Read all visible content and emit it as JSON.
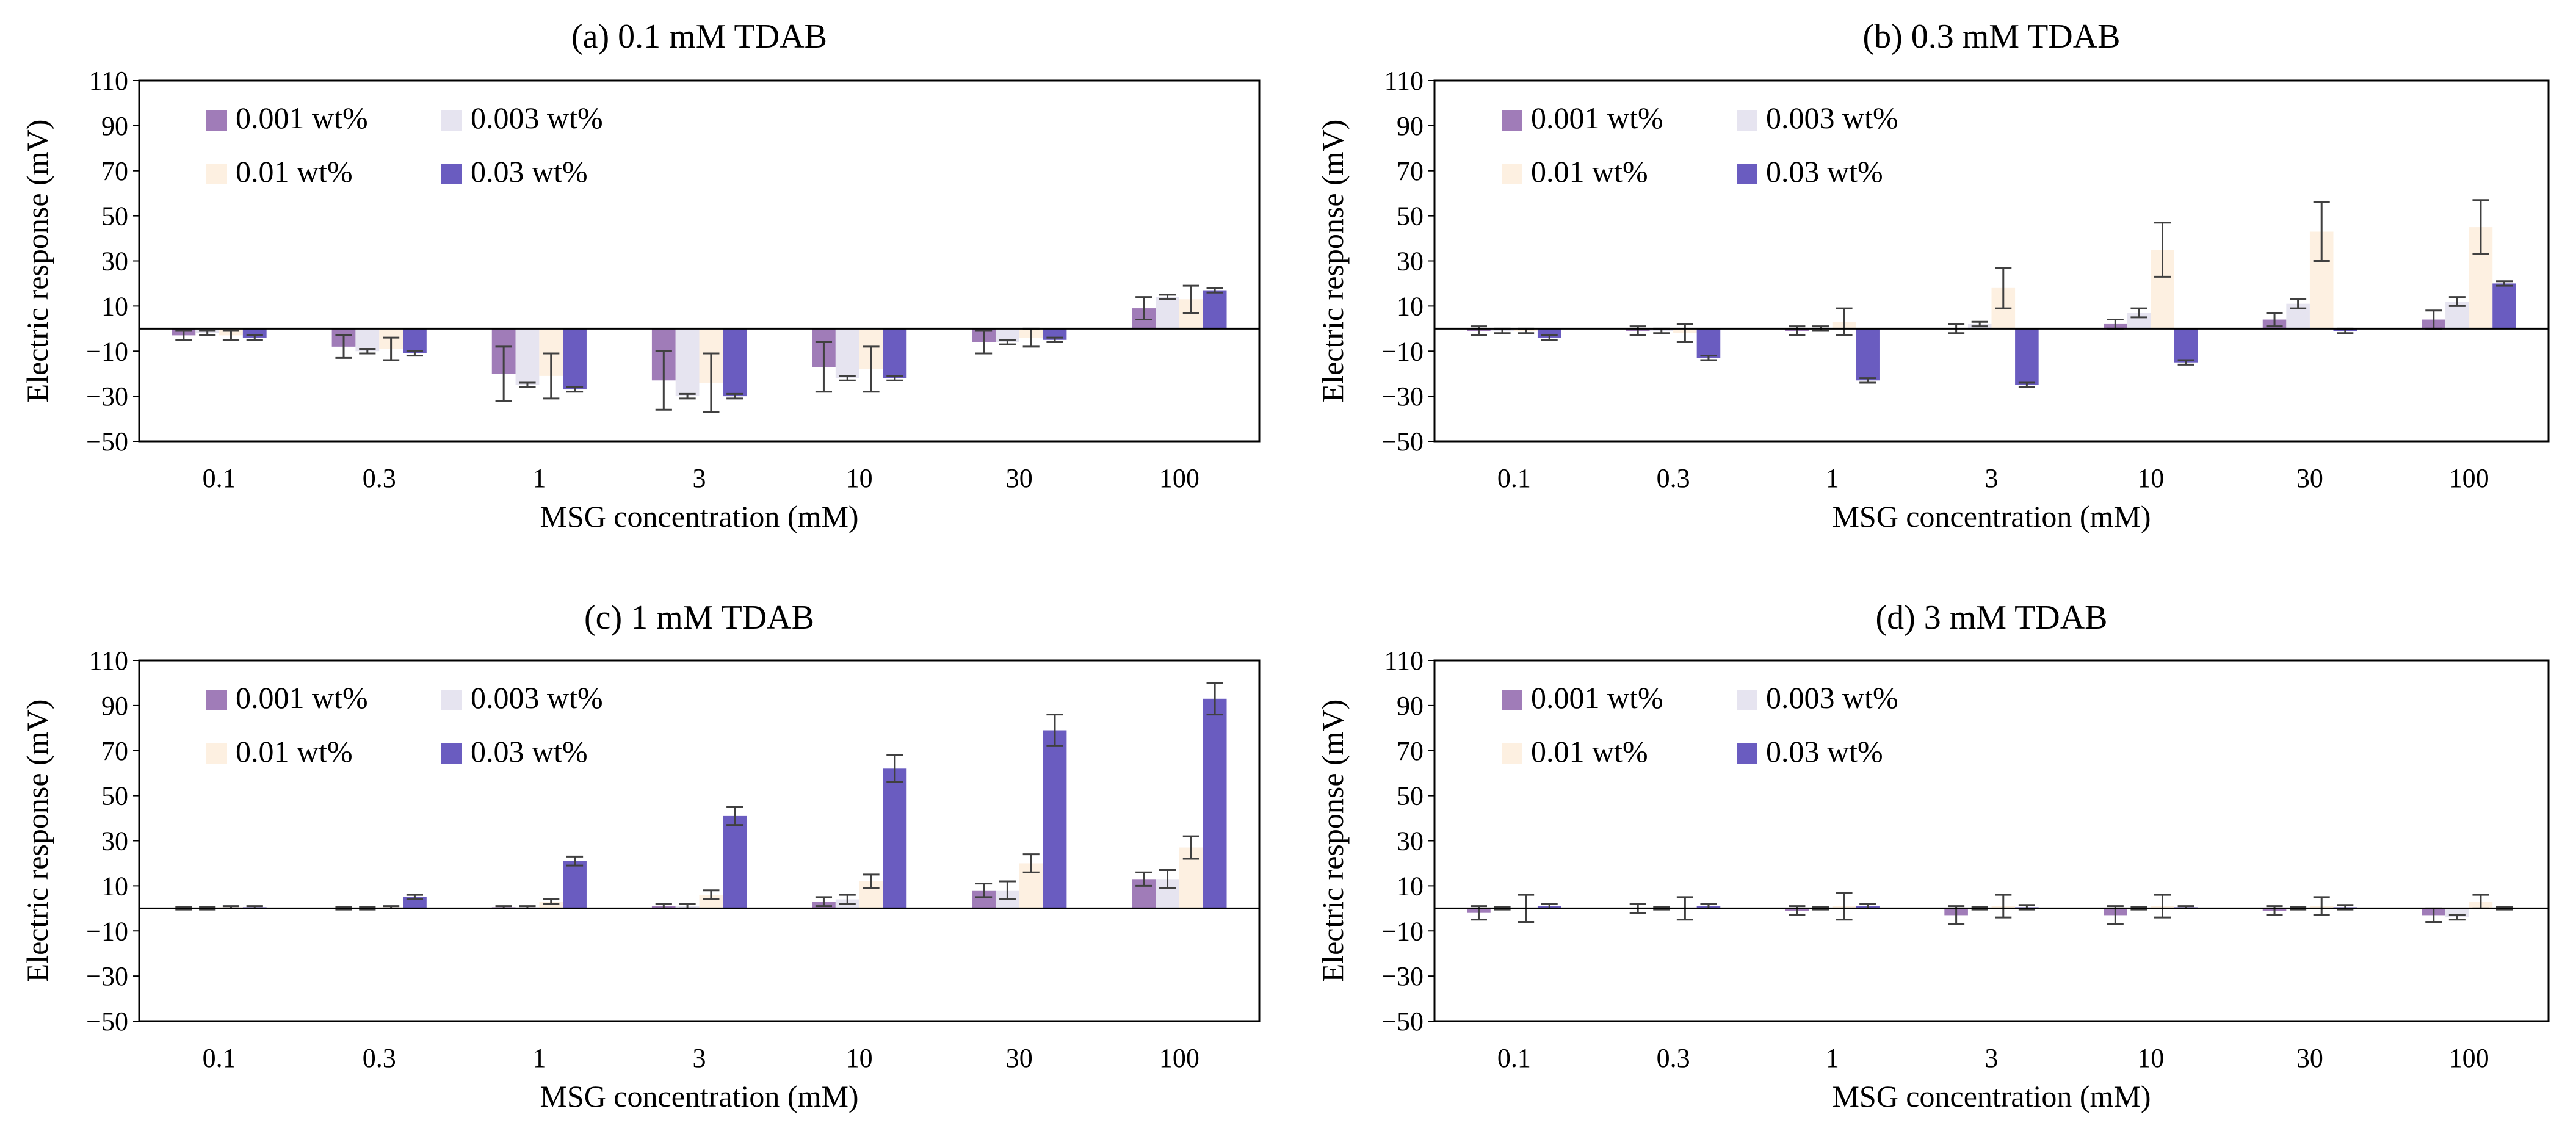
{
  "colors": {
    "s1": "#a07cb8",
    "s2": "#e6e4f0",
    "s3": "#fdf0e1",
    "s4": "#6a5cc0",
    "frame": "#000000",
    "errbar": "#404040"
  },
  "chart_data": [
    {
      "type": "bar",
      "title": "(a) 0.1 mM TDAB",
      "xlabel": "MSG concentration (mM)",
      "ylabel": "Electric response (mV)",
      "ylim": [
        -50,
        110
      ],
      "yticks": [
        110,
        90,
        70,
        50,
        30,
        10,
        -10,
        -30,
        -50
      ],
      "ytick_labels": [
        "110",
        "90",
        "70",
        "50",
        "30",
        "10",
        "−10",
        "−30",
        "−50"
      ],
      "categories": [
        "0.1",
        "0.3",
        "1",
        "3",
        "10",
        "30",
        "100"
      ],
      "legend": "top-left",
      "series": [
        {
          "name": "0.001 wt%",
          "values": [
            -3,
            -8,
            -20,
            -23,
            -17,
            -6,
            9
          ],
          "errors": [
            2,
            5,
            12,
            13,
            11,
            5,
            5
          ]
        },
        {
          "name": "0.003 wt%",
          "values": [
            -2,
            -10,
            -25,
            -30,
            -22,
            -6,
            14
          ],
          "errors": [
            1,
            1,
            1,
            1,
            1,
            1,
            1
          ]
        },
        {
          "name": "0.01 wt%",
          "values": [
            -3,
            -9,
            -21,
            -24,
            -18,
            -4,
            13
          ],
          "errors": [
            2,
            5,
            10,
            13,
            10,
            4,
            6
          ]
        },
        {
          "name": "0.03 wt%",
          "values": [
            -4,
            -11,
            -27,
            -30,
            -22,
            -5,
            17
          ],
          "errors": [
            1,
            1,
            1,
            1,
            1,
            1,
            1
          ]
        }
      ]
    },
    {
      "type": "bar",
      "title": "(b) 0.3 mM TDAB",
      "xlabel": "MSG concentration (mM)",
      "ylabel": "Electric response (mV)",
      "ylim": [
        -50,
        110
      ],
      "yticks": [
        110,
        90,
        70,
        50,
        30,
        10,
        -10,
        -30,
        -50
      ],
      "ytick_labels": [
        "110",
        "90",
        "70",
        "50",
        "30",
        "10",
        "−10",
        "−30",
        "−50"
      ],
      "categories": [
        "0.1",
        "0.3",
        "1",
        "3",
        "10",
        "30",
        "100"
      ],
      "legend": "top-left",
      "series": [
        {
          "name": "0.001 wt%",
          "values": [
            -1,
            -1,
            -1,
            0,
            2,
            4,
            4
          ],
          "errors": [
            2,
            2,
            2,
            2,
            2,
            3,
            4
          ]
        },
        {
          "name": "0.003 wt%",
          "values": [
            -1,
            -1,
            0,
            2,
            7,
            11,
            12
          ],
          "errors": [
            1,
            1,
            1,
            1,
            2,
            2,
            2
          ]
        },
        {
          "name": "0.01 wt%",
          "values": [
            -1,
            -2,
            3,
            18,
            35,
            43,
            45
          ],
          "errors": [
            1,
            4,
            6,
            9,
            12,
            13,
            12
          ]
        },
        {
          "name": "0.03 wt%",
          "values": [
            -4,
            -13,
            -23,
            -25,
            -15,
            -1,
            20
          ],
          "errors": [
            1,
            1,
            1,
            1,
            1,
            1,
            1
          ]
        }
      ]
    },
    {
      "type": "bar",
      "title": "(c) 1 mM TDAB",
      "xlabel": "MSG concentration (mM)",
      "ylabel": "Electric response (mV)",
      "ylim": [
        -50,
        110
      ],
      "yticks": [
        110,
        90,
        70,
        50,
        30,
        10,
        -10,
        -30,
        -50
      ],
      "ytick_labels": [
        "110",
        "90",
        "70",
        "50",
        "30",
        "10",
        "−10",
        "−30",
        "−50"
      ],
      "categories": [
        "0.1",
        "0.3",
        "1",
        "3",
        "10",
        "30",
        "100"
      ],
      "legend": "top-left",
      "series": [
        {
          "name": "0.001 wt%",
          "values": [
            0,
            0,
            0.5,
            1,
            3,
            8,
            13
          ],
          "errors": [
            0.5,
            0.5,
            0.5,
            1,
            2,
            3,
            3
          ]
        },
        {
          "name": "0.003 wt%",
          "values": [
            0,
            0,
            0.5,
            1,
            4,
            8,
            13
          ],
          "errors": [
            0.5,
            0.5,
            0.5,
            1,
            2,
            4,
            4
          ]
        },
        {
          "name": "0.01 wt%",
          "values": [
            0.5,
            0.5,
            3,
            6,
            12,
            20,
            27
          ],
          "errors": [
            0.5,
            0.5,
            1,
            2,
            3,
            4,
            5
          ]
        },
        {
          "name": "0.03 wt%",
          "values": [
            0.5,
            5,
            21,
            41,
            62,
            79,
            93
          ],
          "errors": [
            0.5,
            1,
            2,
            4,
            6,
            7,
            7
          ]
        }
      ]
    },
    {
      "type": "bar",
      "title": "(d) 3 mM TDAB",
      "xlabel": "MSG concentration (mM)",
      "ylabel": "Electric response (mV)",
      "ylim": [
        -50,
        110
      ],
      "yticks": [
        110,
        90,
        70,
        50,
        30,
        10,
        -10,
        -30,
        -50
      ],
      "ytick_labels": [
        "110",
        "90",
        "70",
        "50",
        "30",
        "10",
        "−10",
        "−30",
        "−50"
      ],
      "categories": [
        "0.1",
        "0.3",
        "1",
        "3",
        "10",
        "30",
        "100"
      ],
      "legend": "top-left",
      "series": [
        {
          "name": "0.001 wt%",
          "values": [
            -2,
            0,
            -1,
            -3,
            -3,
            -1,
            -3
          ],
          "errors": [
            3,
            2,
            2,
            4,
            4,
            2,
            3
          ]
        },
        {
          "name": "0.003 wt%",
          "values": [
            0,
            0,
            0,
            0,
            0,
            0,
            -4
          ],
          "errors": [
            0.5,
            0.5,
            0.5,
            0.5,
            0.5,
            0.5,
            1
          ]
        },
        {
          "name": "0.01 wt%",
          "values": [
            0,
            0,
            1,
            1,
            1,
            1,
            3
          ],
          "errors": [
            6,
            5,
            6,
            5,
            5,
            4,
            3
          ]
        },
        {
          "name": "0.03 wt%",
          "values": [
            1,
            1,
            1,
            0.5,
            0.5,
            0.5,
            0
          ],
          "errors": [
            1,
            1,
            1,
            1,
            0.5,
            1,
            0.5
          ]
        }
      ]
    }
  ]
}
